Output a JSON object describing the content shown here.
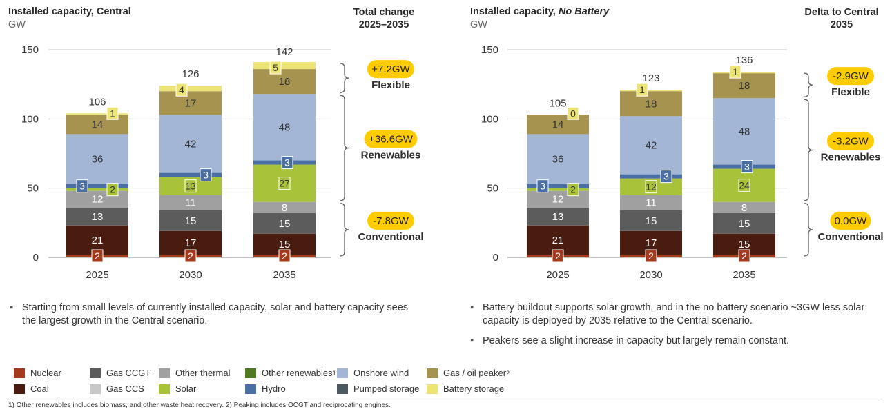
{
  "left_panel": {
    "title": "Installed capacity, Central",
    "unit": "GW",
    "side_title_line1": "Total change",
    "side_title_line2": "2025–2035",
    "groups": [
      {
        "delta": "+7.2GW",
        "name": "Flexible"
      },
      {
        "delta": "+36.6GW",
        "name": "Renewables"
      },
      {
        "delta": "-7.8GW",
        "name": "Conventional"
      }
    ],
    "bullets": [
      "Starting from small levels of currently installed capacity, solar and battery capacity sees the largest growth in the Central scenario."
    ]
  },
  "right_panel": {
    "title_prefix": "Installed capacity, ",
    "title_emphasis": "No Battery",
    "unit": "GW",
    "side_title_line1": "Delta to Central",
    "side_title_line2": "2035",
    "groups": [
      {
        "delta": "-2.9GW",
        "name": "Flexible"
      },
      {
        "delta": "-3.2GW",
        "name": "Renewables"
      },
      {
        "delta": "0.0GW",
        "name": "Conventional"
      }
    ],
    "bullets": [
      "Battery buildout supports solar growth, and in the no battery scenario ~3GW less solar capacity is deployed by 2035 relative to the Central scenario.",
      "Peakers see a slight increase in capacity but largely remain constant."
    ]
  },
  "chart_data": [
    {
      "type": "bar",
      "stacked": true,
      "title": "Installed capacity, Central",
      "ylabel": "GW",
      "ylim": [
        0,
        150
      ],
      "yticks": [
        0,
        50,
        100,
        150
      ],
      "categories": [
        "2025",
        "2030",
        "2035"
      ],
      "totals": [
        106,
        126,
        142
      ],
      "series": [
        {
          "name": "Nuclear",
          "values": [
            2,
            2,
            2
          ]
        },
        {
          "name": "Coal",
          "values": [
            21,
            17,
            15
          ]
        },
        {
          "name": "Gas CCGT",
          "values": [
            13,
            15,
            15
          ]
        },
        {
          "name": "Other thermal",
          "values": [
            12,
            11,
            8
          ]
        },
        {
          "name": "Solar",
          "values": [
            2,
            13,
            27
          ]
        },
        {
          "name": "Hydro",
          "values": [
            3,
            3,
            3
          ]
        },
        {
          "name": "Onshore wind",
          "values": [
            36,
            42,
            48
          ]
        },
        {
          "name": "Gas / oil peaker",
          "values": [
            14,
            17,
            18
          ]
        },
        {
          "name": "Battery storage",
          "values": [
            1,
            4,
            5
          ]
        }
      ]
    },
    {
      "type": "bar",
      "stacked": true,
      "title": "Installed capacity, No Battery",
      "ylabel": "GW",
      "ylim": [
        0,
        150
      ],
      "yticks": [
        0,
        50,
        100,
        150
      ],
      "categories": [
        "2025",
        "2030",
        "2035"
      ],
      "totals": [
        105,
        123,
        136
      ],
      "series": [
        {
          "name": "Nuclear",
          "values": [
            2,
            2,
            2
          ]
        },
        {
          "name": "Coal",
          "values": [
            21,
            17,
            15
          ]
        },
        {
          "name": "Gas CCGT",
          "values": [
            13,
            15,
            15
          ]
        },
        {
          "name": "Other thermal",
          "values": [
            12,
            11,
            8
          ]
        },
        {
          "name": "Solar",
          "values": [
            2,
            12,
            24
          ]
        },
        {
          "name": "Hydro",
          "values": [
            3,
            3,
            3
          ]
        },
        {
          "name": "Onshore wind",
          "values": [
            36,
            42,
            48
          ]
        },
        {
          "name": "Gas / oil peaker",
          "values": [
            14,
            18,
            18
          ]
        },
        {
          "name": "Battery storage",
          "values": [
            0,
            1,
            1
          ]
        }
      ]
    }
  ],
  "series_colors": {
    "Nuclear": "#a33a1e",
    "Coal": "#4a1c10",
    "Gas CCGT": "#5c5c5c",
    "Gas CCS": "#c8c8c8",
    "Other thermal": "#a0a0a0",
    "Solar": "#a8c23a",
    "Other renewables": "#4f7a1f",
    "Hydro": "#4a6fa5",
    "Onshore wind": "#a3b6d6",
    "Pumped storage": "#4b5a62",
    "Gas / oil peaker": "#a69350",
    "Battery storage": "#ece475"
  },
  "badge_series": [
    "Nuclear",
    "Solar",
    "Hydro",
    "Battery storage"
  ],
  "callout_color": "#ffcc00",
  "legend": [
    {
      "label": "Nuclear",
      "sup": ""
    },
    {
      "label": "Gas CCGT",
      "sup": ""
    },
    {
      "label": "Other thermal",
      "sup": ""
    },
    {
      "label": "Other renewables",
      "sup": "1"
    },
    {
      "label": "Onshore wind",
      "sup": ""
    },
    {
      "label": "Gas / oil peaker",
      "sup": "2"
    },
    {
      "label": "Coal",
      "sup": ""
    },
    {
      "label": "Gas CCS",
      "sup": ""
    },
    {
      "label": "Solar",
      "sup": ""
    },
    {
      "label": "Hydro",
      "sup": ""
    },
    {
      "label": "Pumped storage",
      "sup": ""
    },
    {
      "label": "Battery storage",
      "sup": ""
    }
  ],
  "footnote": "1) Other renewables includes biomass, and other waste heat recovery. 2) Peaking includes OCGT and reciprocating engines."
}
